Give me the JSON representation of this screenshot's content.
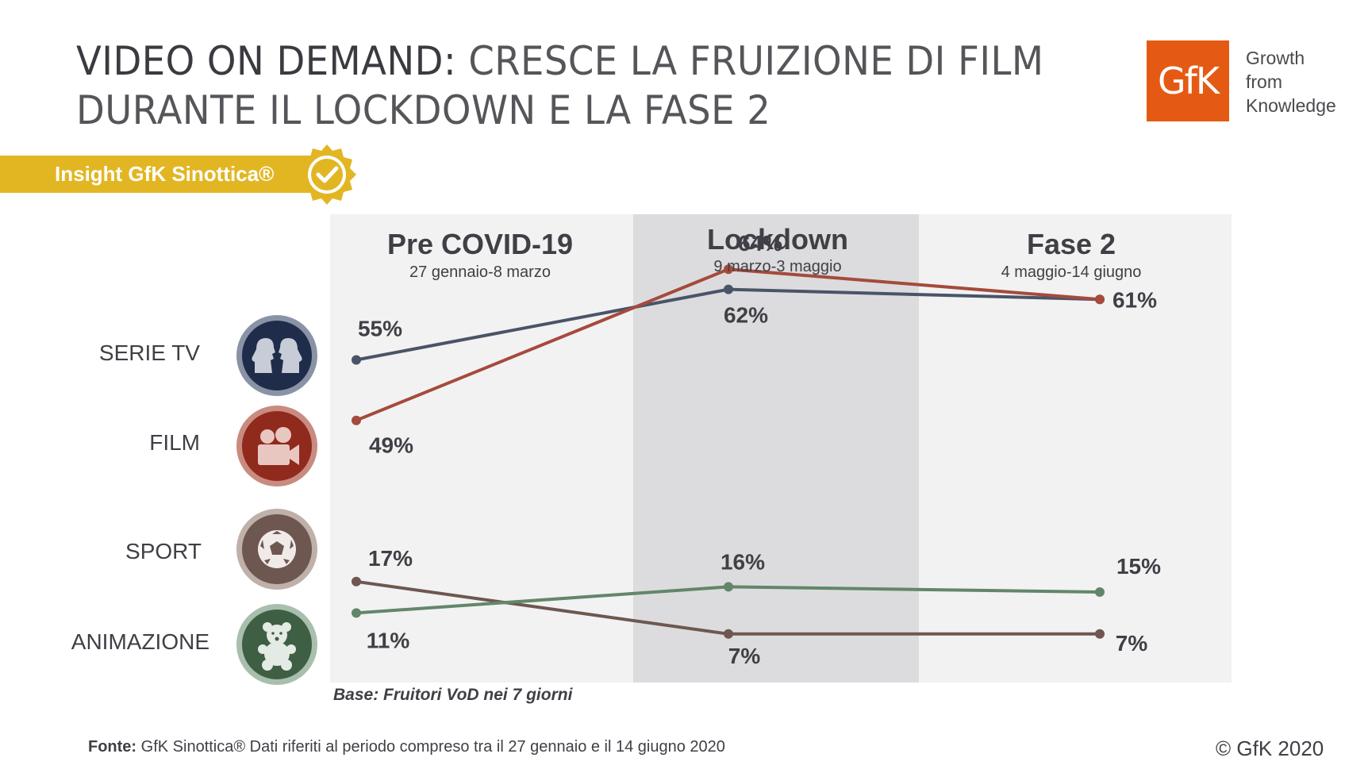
{
  "header": {
    "title_strong": "VIDEO ON DEMAND:",
    "title_rest_line1": " CRESCE LA FRUIZIONE DI FILM",
    "title_line2": "DURANTE IL LOCKDOWN E LA FASE 2",
    "logo_text": "GfK",
    "tagline": [
      "Growth",
      "from",
      "Knowledge"
    ]
  },
  "insight": {
    "label": "Insight GfK Sinottica®"
  },
  "colors": {
    "serie_tv": "#4a5468",
    "film": "#a54a3c",
    "sport": "#6e5750",
    "animazione": "#63866a",
    "panel_light": "#f2f2f2",
    "panel_dark": "#dcdcde",
    "brand_orange": "#e55a13",
    "insight_gold": "#e2b623"
  },
  "categories": [
    {
      "label": "SERIE TV",
      "icon": "profiles-icon"
    },
    {
      "label": "FILM",
      "icon": "video-camera-icon"
    },
    {
      "label": "SPORT",
      "icon": "soccer-ball-icon"
    },
    {
      "label": "ANIMAZIONE",
      "icon": "teddy-bear-icon"
    }
  ],
  "chart_data": {
    "type": "line",
    "title": "Video on demand: cresce la fruizione di film durante il lockdown e la fase 2",
    "categories": [
      "Pre COVID-19",
      "Lockdown",
      "Fase 2"
    ],
    "periods": [
      {
        "name": "Pre COVID-19",
        "dates": "27 gennaio-8 marzo"
      },
      {
        "name": "Lockdown",
        "dates": "9 marzo-3 maggio"
      },
      {
        "name": "Fase 2",
        "dates": "4 maggio-14 giugno"
      }
    ],
    "series": [
      {
        "name": "SERIE TV",
        "values": [
          55,
          62,
          61
        ],
        "labels": [
          "55%",
          "62%",
          ""
        ]
      },
      {
        "name": "FILM",
        "values": [
          49,
          64,
          61
        ],
        "labels": [
          "49%",
          "64%",
          "61%"
        ]
      },
      {
        "name": "SPORT",
        "values": [
          17,
          7,
          7
        ],
        "labels": [
          "17%",
          "7%",
          "7%"
        ]
      },
      {
        "name": "ANIMAZIONE",
        "values": [
          11,
          16,
          15
        ],
        "labels": [
          "11%",
          "16%",
          "15%"
        ]
      }
    ],
    "xlabel": "",
    "ylabel": "",
    "grid": false
  },
  "base_note": "Base: Fruitori VoD nei 7 giorni",
  "footer": {
    "source_label": "Fonte:",
    "source_text": " GfK Sinottica® Dati riferiti al periodo compreso tra il 27 gennaio e il 14 giugno 2020",
    "copyright": "© GfK 2020"
  }
}
